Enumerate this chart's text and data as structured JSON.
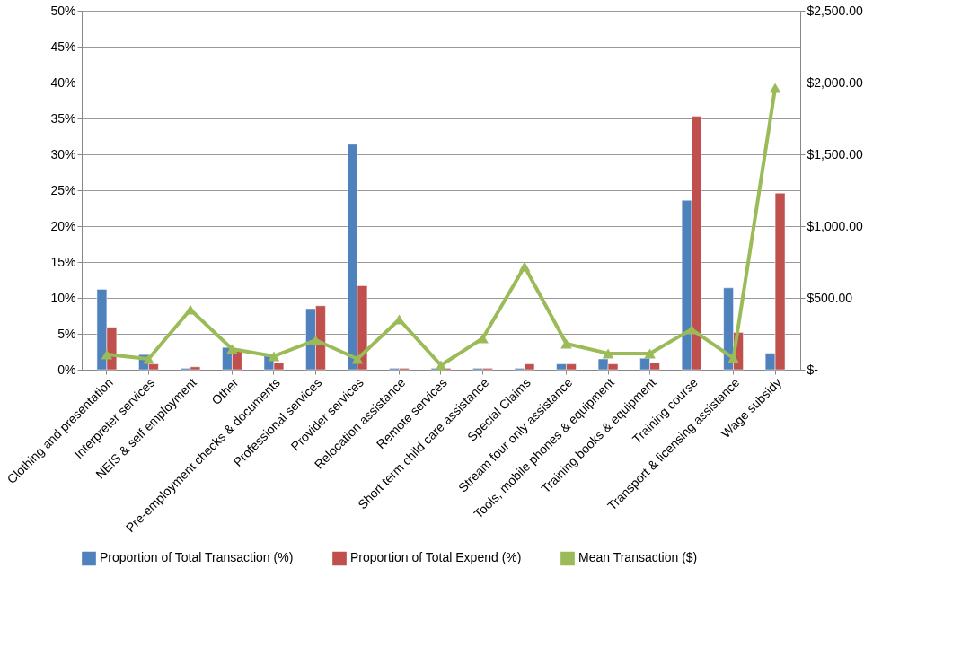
{
  "chart_data": {
    "type": "bar",
    "categories": [
      "Clothing and presentation",
      "Interpreter services",
      "NEIS & self employment",
      "Other",
      "Pre-employment checks & documents",
      "Professional services",
      "Provider services",
      "Relocation assistance",
      "Remote services",
      "Short term child care assistance",
      "Special Claims",
      "Stream four only assistance",
      "Tools, mobile phones & equipment",
      "Training books & equipment",
      "Training course",
      "Transport & licensing assistance",
      "Wage subsidy"
    ],
    "series": [
      {
        "name": "Proportion of Total Transaction (%)",
        "color": "#4f81bd",
        "values": [
          11.2,
          2.1,
          0.2,
          3.1,
          2.0,
          8.5,
          31.4,
          0.2,
          0.2,
          0.2,
          0.2,
          0.8,
          1.5,
          1.6,
          23.6,
          11.4,
          2.3
        ]
      },
      {
        "name": "Proportion of Total Expend (%)",
        "color": "#c0504d",
        "values": [
          5.9,
          0.8,
          0.4,
          2.6,
          1.0,
          8.9,
          11.7,
          0.2,
          0.2,
          0.2,
          0.8,
          0.8,
          0.8,
          1.0,
          35.3,
          5.2,
          24.6
        ]
      },
      {
        "name": "Mean Transaction ($)",
        "color": "#9bbb59",
        "type": "line",
        "axis": "y2",
        "marker": "triangle",
        "values": [
          106,
          75,
          419,
          144,
          94,
          206,
          75,
          350,
          31,
          219,
          719,
          181,
          113,
          113,
          281,
          81,
          1963
        ]
      }
    ],
    "ylim": [
      0,
      50
    ],
    "yticks": [
      {
        "value": 0,
        "label": "0%"
      },
      {
        "value": 5,
        "label": "5%"
      },
      {
        "value": 10,
        "label": "10%"
      },
      {
        "value": 15,
        "label": "15%"
      },
      {
        "value": 20,
        "label": "20%"
      },
      {
        "value": 25,
        "label": "25%"
      },
      {
        "value": 30,
        "label": "30%"
      },
      {
        "value": 35,
        "label": "35%"
      },
      {
        "value": 40,
        "label": "40%"
      },
      {
        "value": 45,
        "label": "45%"
      },
      {
        "value": 50,
        "label": "50%"
      }
    ],
    "y2lim": [
      0,
      2500
    ],
    "y2ticks": [
      {
        "value": 0,
        "label": "$-"
      },
      {
        "value": 500,
        "label": "$500.00"
      },
      {
        "value": 1000,
        "label": "$1,000.00"
      },
      {
        "value": 1500,
        "label": "$1,500.00"
      },
      {
        "value": 2000,
        "label": "$2,000.00"
      },
      {
        "value": 2500,
        "label": "$2,500.00"
      }
    ],
    "grid": "y",
    "legend": "bottom"
  }
}
